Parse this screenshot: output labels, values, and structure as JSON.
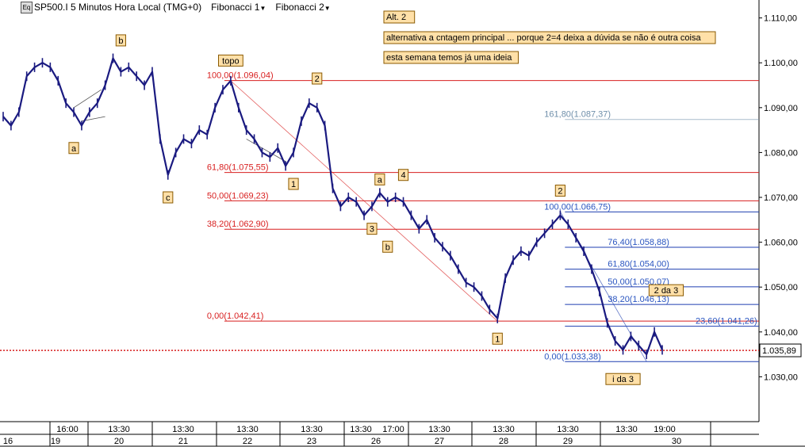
{
  "header": {
    "symbol_title": "SP500.I 5 Minutos Hora Local (TMG+0)",
    "menu1": "Fibonacci 1",
    "menu2": "Fibonacci 2",
    "icon": "chart-window-icon",
    "badge": "Eq"
  },
  "colors": {
    "price": "#1a1a80",
    "fib1": "#d81f1f",
    "fib2": "#1f3fb0",
    "fib2_text": "#2a55c0",
    "fib2_faded": "#6f8faa",
    "current_line": "#d81f1f",
    "label_bg": "#ffe0a8",
    "label_border": "#8a5a00"
  },
  "notes": [
    "Alt. 2",
    "alternativa a cntagem principal ... porque 2=4 deixa a dúvida se não é outra coisa",
    "esta semana temos já uma ideia"
  ],
  "chart_data": {
    "type": "line",
    "title": "SP500.I 5 Minutos Hora Local (TMG+0)",
    "y_axis": {
      "ylim": [
        1.02,
        1.114
      ],
      "ticks": [
        "1.110,00",
        "1.100,00",
        "1.090,00",
        "1.080,00",
        "1.070,00",
        "1.060,00",
        "1.050,00",
        "1.040,00",
        "1.030,00"
      ],
      "side": "right"
    },
    "current_price": "1.035,89",
    "current_value": 1.03589,
    "x_axis": {
      "day_labels": [
        "16",
        "19",
        "20",
        "21",
        "22",
        "23",
        "26",
        "27",
        "28",
        "29",
        "30"
      ],
      "time_labels": [
        "16:00",
        "13:30",
        "13:30",
        "13:30",
        "13:30",
        "13:30",
        "17:00",
        "13:30",
        "13:30",
        "13:30",
        "13:30",
        "19:00"
      ]
    },
    "series": [
      {
        "points": [
          [
            0,
            1.088
          ],
          [
            1,
            1.086
          ],
          [
            2,
            1.089
          ],
          [
            3,
            1.097
          ],
          [
            4,
            1.099
          ],
          [
            5,
            1.1
          ],
          [
            6,
            1.099
          ],
          [
            7,
            1.096
          ],
          [
            8,
            1.091
          ],
          [
            9,
            1.089
          ],
          [
            10,
            1.086
          ],
          [
            11,
            1.089
          ],
          [
            12,
            1.091
          ],
          [
            13,
            1.095
          ],
          [
            14,
            1.101
          ],
          [
            15,
            1.098
          ],
          [
            16,
            1.099
          ],
          [
            17,
            1.097
          ],
          [
            18,
            1.095
          ],
          [
            19,
            1.098
          ],
          [
            20,
            1.083
          ],
          [
            21,
            1.075
          ],
          [
            22,
            1.08
          ],
          [
            23,
            1.083
          ],
          [
            24,
            1.082
          ],
          [
            25,
            1.085
          ],
          [
            26,
            1.084
          ],
          [
            27,
            1.09
          ],
          [
            28,
            1.094
          ],
          [
            29,
            1.096
          ],
          [
            30,
            1.09
          ],
          [
            31,
            1.085
          ],
          [
            32,
            1.083
          ],
          [
            33,
            1.08
          ],
          [
            34,
            1.079
          ],
          [
            35,
            1.081
          ],
          [
            36,
            1.077
          ],
          [
            37,
            1.08
          ],
          [
            38,
            1.087
          ],
          [
            39,
            1.091
          ],
          [
            40,
            1.09
          ],
          [
            41,
            1.086
          ],
          [
            42,
            1.072
          ],
          [
            43,
            1.068
          ],
          [
            44,
            1.07
          ],
          [
            45,
            1.069
          ],
          [
            46,
            1.066
          ],
          [
            47,
            1.068
          ],
          [
            48,
            1.071
          ],
          [
            49,
            1.069
          ],
          [
            50,
            1.07
          ],
          [
            51,
            1.069
          ],
          [
            52,
            1.066
          ],
          [
            53,
            1.063
          ],
          [
            54,
            1.065
          ],
          [
            55,
            1.061
          ],
          [
            56,
            1.059
          ],
          [
            57,
            1.057
          ],
          [
            58,
            1.054
          ],
          [
            59,
            1.051
          ],
          [
            60,
            1.05
          ],
          [
            61,
            1.048
          ],
          [
            62,
            1.045
          ],
          [
            63,
            1.043
          ],
          [
            64,
            1.052
          ],
          [
            65,
            1.056
          ],
          [
            66,
            1.058
          ],
          [
            67,
            1.057
          ],
          [
            68,
            1.06
          ],
          [
            69,
            1.062
          ],
          [
            70,
            1.064
          ],
          [
            71,
            1.066
          ],
          [
            72,
            1.064
          ],
          [
            73,
            1.061
          ],
          [
            74,
            1.058
          ],
          [
            75,
            1.054
          ],
          [
            76,
            1.049
          ],
          [
            77,
            1.042
          ],
          [
            78,
            1.038
          ],
          [
            79,
            1.036
          ],
          [
            80,
            1.039
          ],
          [
            81,
            1.037
          ],
          [
            82,
            1.035
          ],
          [
            83,
            1.04
          ],
          [
            84,
            1.036
          ]
        ]
      }
    ],
    "fibonacci_1": [
      {
        "label": "100,00(1.096,04)",
        "value": 1.09604
      },
      {
        "label": "61,80(1.075,55)",
        "value": 1.07555
      },
      {
        "label": "50,00(1.069,23)",
        "value": 1.06923
      },
      {
        "label": "38,20(1.062,90)",
        "value": 1.0629
      },
      {
        "label": "0,00(1.042,41)",
        "value": 1.04241
      }
    ],
    "fibonacci_2": [
      {
        "label": "161,80(1.087,37)",
        "value": 1.08737
      },
      {
        "label": "100,00(1.066,75)",
        "value": 1.06675
      },
      {
        "label": "76,40(1.058,88)",
        "value": 1.05888
      },
      {
        "label": "61,80(1.054,00)",
        "value": 1.054
      },
      {
        "label": "50,00(1.050,07)",
        "value": 1.05007
      },
      {
        "label": "38,20(1.046,13)",
        "value": 1.04613
      },
      {
        "label": "23,60(1.041,26)",
        "value": 1.04126
      },
      {
        "label": "0,00(1.033,38)",
        "value": 1.03338
      }
    ],
    "wave_labels": [
      {
        "text": "b",
        "i": 15,
        "v": 1.105
      },
      {
        "text": "a",
        "i": 9,
        "v": 1.081
      },
      {
        "text": "c",
        "i": 21,
        "v": 1.07
      },
      {
        "text": "topo",
        "i": 29,
        "v": 1.1005
      },
      {
        "text": "2",
        "i": 40,
        "v": 1.0965
      },
      {
        "text": "1",
        "i": 37,
        "v": 1.073
      },
      {
        "text": "a",
        "i": 48,
        "v": 1.074
      },
      {
        "text": "4",
        "i": 51,
        "v": 1.075
      },
      {
        "text": "3",
        "i": 47,
        "v": 1.063
      },
      {
        "text": "b",
        "i": 49,
        "v": 1.059
      },
      {
        "text": "1",
        "i": 63,
        "v": 1.0385
      },
      {
        "text": "2",
        "i": 71,
        "v": 1.0715
      },
      {
        "text": "2 da 3",
        "i": 84.5,
        "v": 1.0493
      },
      {
        "text": "i da 3",
        "i": 79,
        "v": 1.0295
      }
    ]
  }
}
